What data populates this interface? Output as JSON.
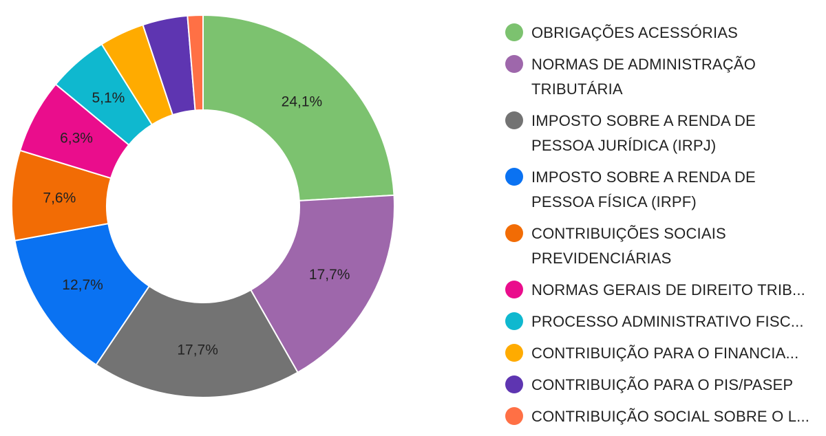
{
  "chart_data": {
    "type": "pie",
    "donut": true,
    "legend_position": "right",
    "slices": [
      {
        "label": "OBRIGAÇÕES ACESSÓRIAS",
        "value": 24.1,
        "value_label": "24,1%",
        "color": "#7cc26f"
      },
      {
        "label": "NORMAS DE ADMINISTRAÇÃO TRIBUTÁRIA",
        "value": 17.7,
        "value_label": "17,7%",
        "color": "#9e67ab"
      },
      {
        "label": "IMPOSTO SOBRE A RENDA DE PESSOA JURÍDICA (IRPJ)",
        "value": 17.7,
        "value_label": "17,7%",
        "color": "#737373"
      },
      {
        "label": "IMPOSTO SOBRE A RENDA DE PESSOA FÍSICA (IRPF)",
        "value": 12.7,
        "value_label": "12,7%",
        "color": "#0a72f2"
      },
      {
        "label": "CONTRIBUIÇÕES SOCIAIS PREVIDENCIÁRIAS",
        "value": 7.6,
        "value_label": "7,6%",
        "color": "#f26c05"
      },
      {
        "label": "NORMAS GERAIS DE DIREITO TRIB...",
        "value": 6.3,
        "value_label": "6,3%",
        "color": "#ea0d8c"
      },
      {
        "label": "PROCESSO ADMINISTRATIVO FISC...",
        "value": 5.1,
        "value_label": "5,1%",
        "color": "#0fb8cf"
      },
      {
        "label": "CONTRIBUIÇÃO PARA O FINANCIA...",
        "value": 3.8,
        "value_label": "",
        "color": "#ffab00"
      },
      {
        "label": "CONTRIBUIÇÃO PARA O PIS/PASEP",
        "value": 3.8,
        "value_label": "",
        "color": "#5e35b1"
      },
      {
        "label": "CONTRIBUIÇÃO SOCIAL SOBRE O L...",
        "value": 1.3,
        "value_label": "",
        "color": "#ff7045"
      }
    ]
  }
}
